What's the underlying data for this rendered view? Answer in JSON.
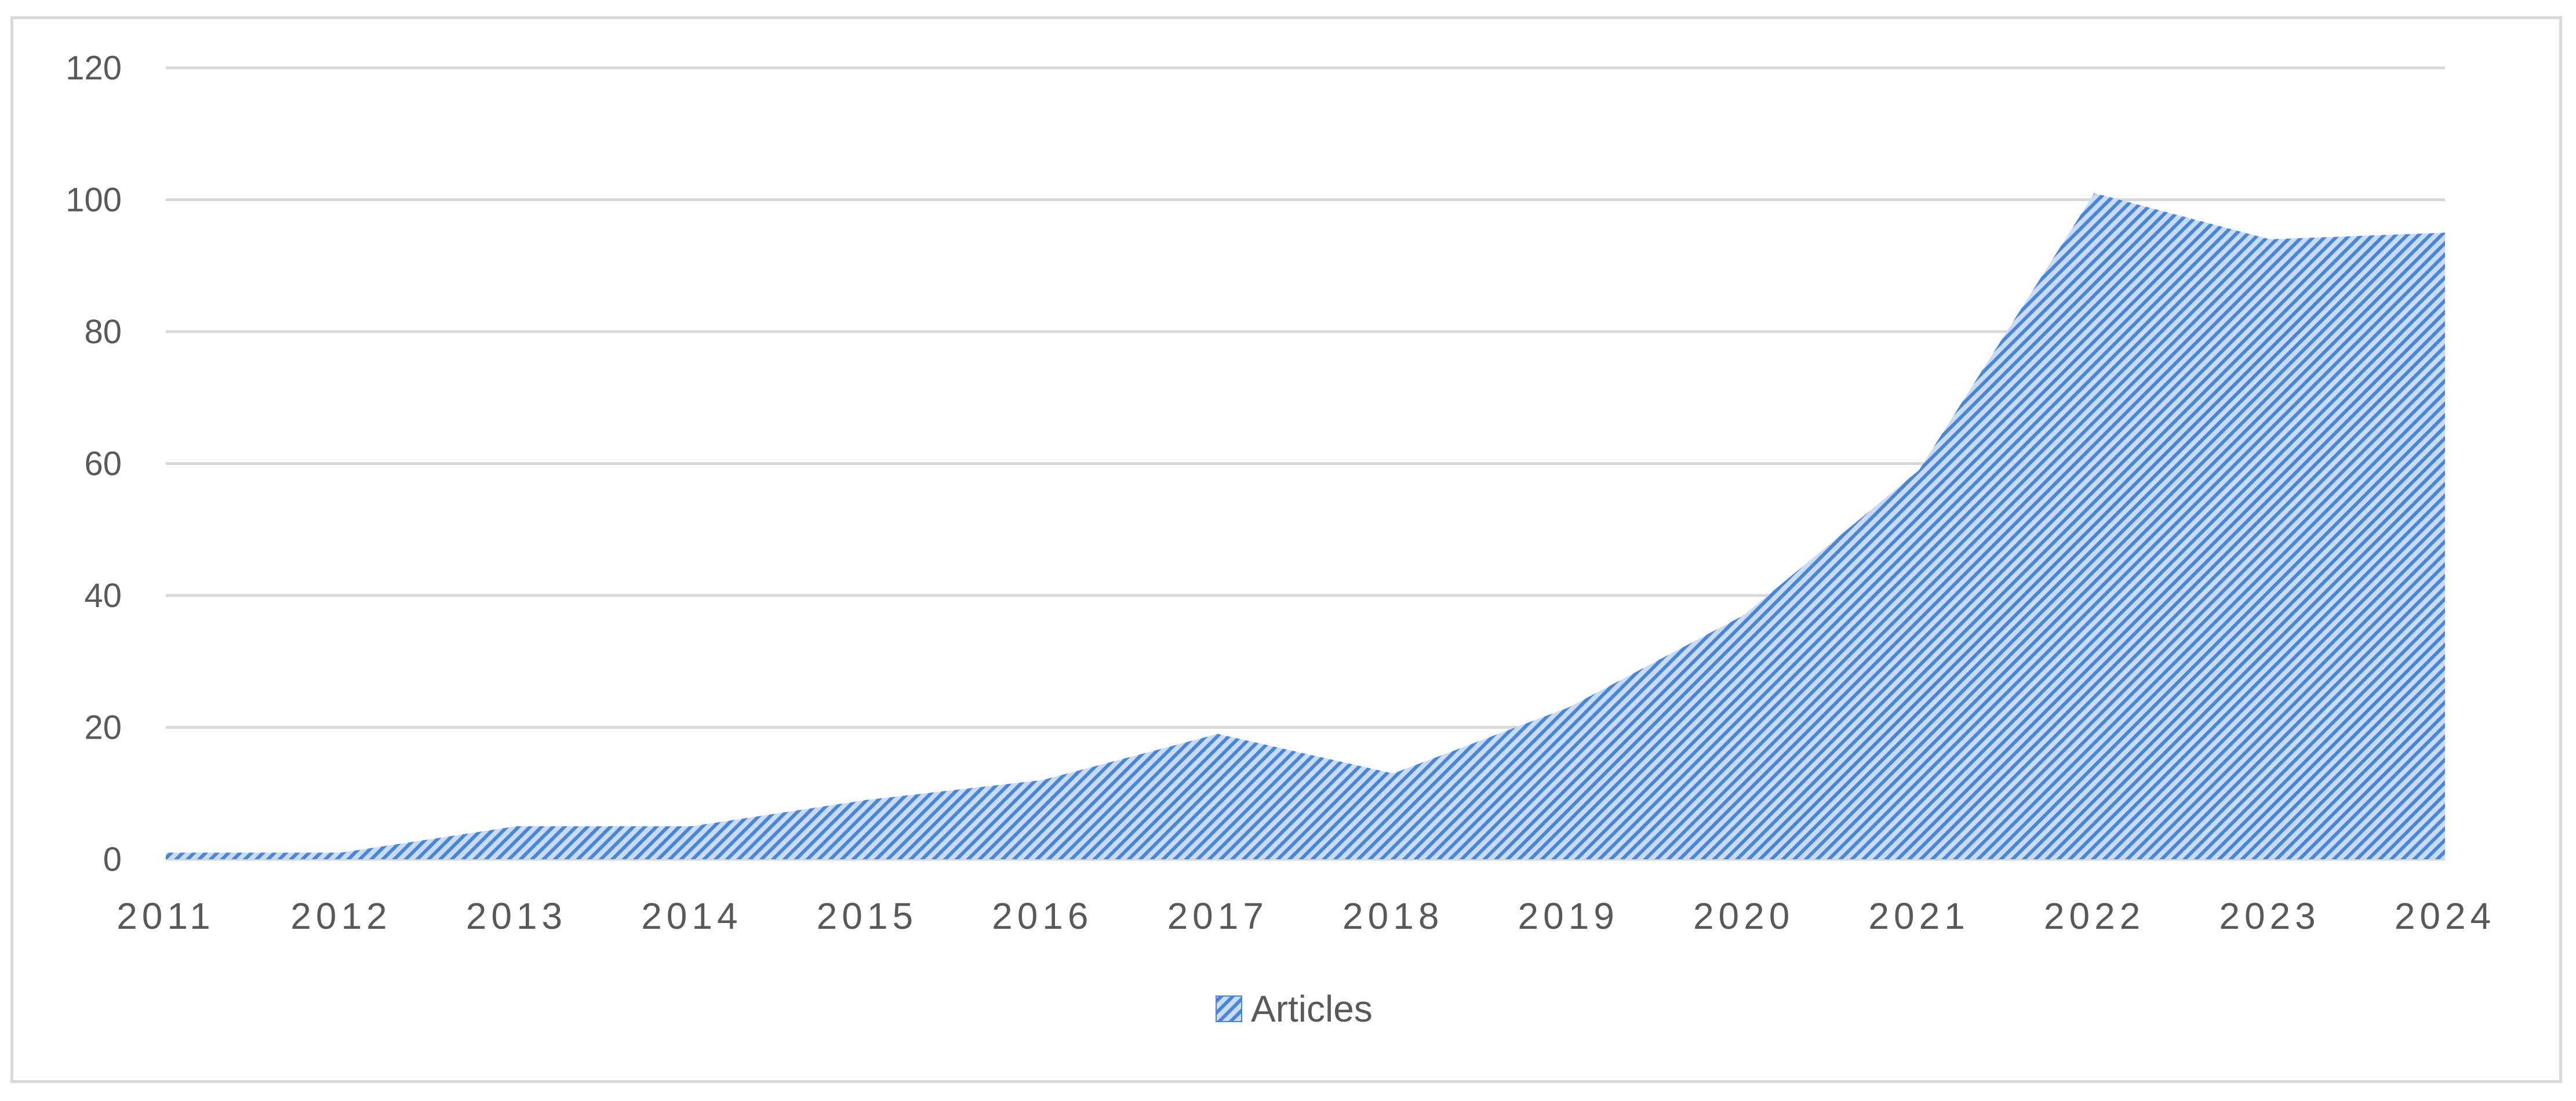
{
  "chart_data": {
    "type": "area",
    "x": [
      "2011",
      "2012",
      "2013",
      "2014",
      "2015",
      "2016",
      "2017",
      "2018",
      "2019",
      "2020",
      "2021",
      "2022",
      "2023",
      "2024"
    ],
    "series": [
      {
        "name": "Articles",
        "values": [
          1,
          1,
          5,
          5,
          9,
          12,
          19,
          13,
          23,
          37,
          59,
          101,
          94,
          95
        ]
      }
    ],
    "y_ticks": [
      "0",
      "20",
      "40",
      "60",
      "80",
      "100",
      "120"
    ],
    "ylim": [
      0,
      120
    ],
    "title": "",
    "xlabel": "",
    "ylabel": "",
    "grid": true,
    "legend_position": "bottom",
    "colors": {
      "fill": "#4a86d8",
      "fill_light": "#c9dcf3",
      "grid": "#d9d9d9",
      "text": "#595959"
    }
  }
}
